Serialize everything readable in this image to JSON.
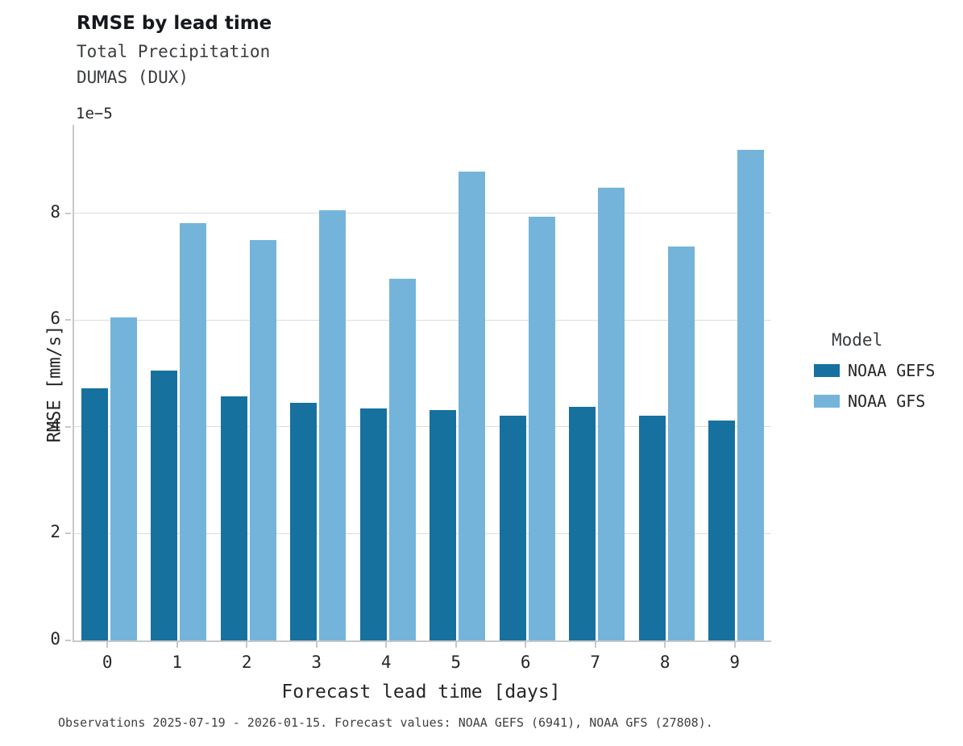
{
  "header": {
    "title": "RMSE by lead time",
    "subtitle1": "Total Precipitation",
    "subtitle2": "DUMAS (DUX)"
  },
  "axes": {
    "offset_text": "1e−5",
    "ylabel": "RMSE [mm/s]",
    "xlabel": "Forecast lead time [days]"
  },
  "legend": {
    "title": "Model",
    "entries": [
      {
        "label": "NOAA GEFS",
        "color": "#17719f"
      },
      {
        "label": "NOAA GFS",
        "color": "#74b4da"
      }
    ]
  },
  "caption": "Observations 2025-07-19 - 2026-01-15. Forecast values: NOAA GEFS (6941), NOAA GFS (27808).",
  "chart_data": {
    "type": "bar",
    "title": "RMSE by lead time",
    "subtitle": "Total Precipitation — DUMAS (DUX)",
    "xlabel": "Forecast lead time [days]",
    "ylabel": "RMSE [mm/s]",
    "value_scale": "1e-5",
    "categories": [
      "0",
      "1",
      "2",
      "3",
      "4",
      "5",
      "6",
      "7",
      "8",
      "9"
    ],
    "series": [
      {
        "name": "NOAA GEFS",
        "color": "#17719f",
        "values": [
          4.72,
          5.06,
          4.57,
          4.45,
          4.35,
          4.32,
          4.21,
          4.38,
          4.21,
          4.12
        ]
      },
      {
        "name": "NOAA GFS",
        "color": "#74b4da",
        "values": [
          6.05,
          7.82,
          7.5,
          8.06,
          6.78,
          8.78,
          7.94,
          8.48,
          7.38,
          9.19
        ]
      }
    ],
    "yticks": [
      0,
      2,
      4,
      6,
      8
    ],
    "ylim": [
      0,
      9.66
    ],
    "grid": true,
    "legend_position": "right"
  }
}
